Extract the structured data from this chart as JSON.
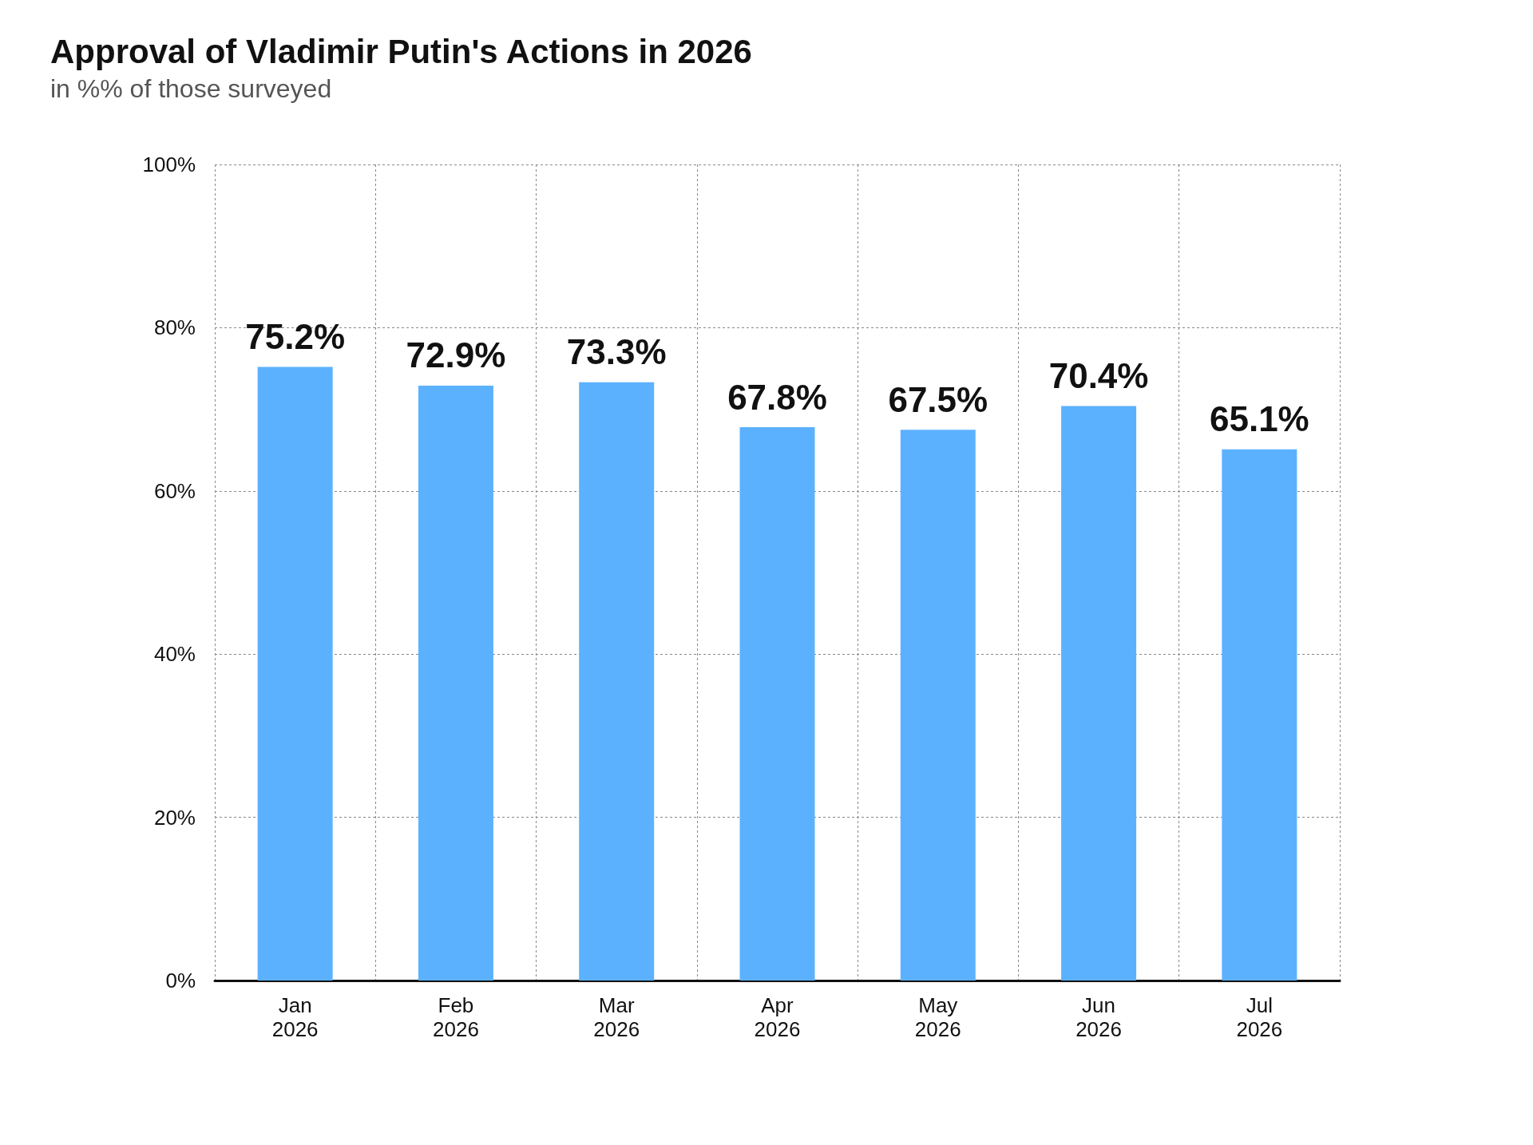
{
  "chart_data": {
    "type": "bar",
    "title": "Approval of Vladimir Putin's Actions in 2026",
    "subtitle": "in %% of those surveyed",
    "categories": [
      "Jan\n2026",
      "Feb\n2026",
      "Mar\n2026",
      "Apr\n2026",
      "May\n2026",
      "Jun\n2026",
      "Jul\n2026"
    ],
    "values": [
      75.2,
      72.9,
      73.3,
      67.8,
      67.5,
      70.4,
      65.1
    ],
    "value_labels": [
      "75.2%",
      "72.9%",
      "73.3%",
      "67.8%",
      "67.5%",
      "70.4%",
      "65.1%"
    ],
    "color": "#5cb1ff",
    "ylim": [
      0,
      100
    ],
    "yticks": [
      {
        "value": 0,
        "label": "0%"
      },
      {
        "value": 20,
        "label": "20%"
      },
      {
        "value": 40,
        "label": "40%"
      },
      {
        "value": 60,
        "label": "60%"
      },
      {
        "value": 80,
        "label": "80%"
      },
      {
        "value": 100,
        "label": "100%"
      }
    ],
    "grid": true
  }
}
